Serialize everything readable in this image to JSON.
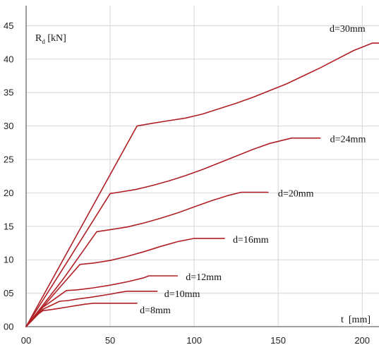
{
  "chart_data": {
    "type": "line",
    "title": "",
    "xlabel": "t  [mm]",
    "ylabel": "R",
    "ylabel_subscript": "d",
    "ylabel_unit": " [kN]",
    "xlim": [
      0,
      210
    ],
    "ylim": [
      0,
      48
    ],
    "x_ticks": [
      0,
      50,
      100,
      150,
      200
    ],
    "x_tick_labels": [
      "00",
      "50",
      "100",
      "150",
      "200"
    ],
    "y_ticks": [
      0,
      5,
      10,
      15,
      20,
      25,
      30,
      35,
      40,
      45
    ],
    "y_tick_labels": [
      "00",
      "05",
      "10",
      "15",
      "20",
      "25",
      "30",
      "35",
      "40",
      "45"
    ],
    "grid": true,
    "legend": "none",
    "line_color": "#b01f24",
    "series": [
      {
        "name": "d=8mm",
        "points": [
          [
            0,
            0
          ],
          [
            5,
            1.5
          ],
          [
            10,
            2.4
          ],
          [
            15,
            2.55
          ],
          [
            20,
            2.75
          ],
          [
            25,
            2.95
          ],
          [
            30,
            3.15
          ],
          [
            35,
            3.35
          ],
          [
            40,
            3.5
          ],
          [
            48,
            3.5
          ],
          [
            66,
            3.5
          ]
        ]
      },
      {
        "name": "d=10mm",
        "points": [
          [
            0,
            0
          ],
          [
            10,
            2.6
          ],
          [
            20,
            3.8
          ],
          [
            25,
            3.9
          ],
          [
            30,
            4.1
          ],
          [
            40,
            4.45
          ],
          [
            50,
            4.85
          ],
          [
            55,
            5.1
          ],
          [
            60,
            5.3
          ],
          [
            70,
            5.3
          ],
          [
            78,
            5.3
          ]
        ]
      },
      {
        "name": "d=12mm",
        "points": [
          [
            0,
            0
          ],
          [
            10,
            2.9
          ],
          [
            24,
            5.4
          ],
          [
            30,
            5.5
          ],
          [
            40,
            5.8
          ],
          [
            50,
            6.2
          ],
          [
            60,
            6.7
          ],
          [
            70,
            7.3
          ],
          [
            73,
            7.6
          ],
          [
            84,
            7.6
          ],
          [
            90,
            7.6
          ]
        ]
      },
      {
        "name": "d=16mm",
        "points": [
          [
            0,
            0
          ],
          [
            16,
            4.7
          ],
          [
            32,
            9.3
          ],
          [
            40,
            9.5
          ],
          [
            50,
            9.9
          ],
          [
            60,
            10.5
          ],
          [
            70,
            11.2
          ],
          [
            80,
            12.0
          ],
          [
            90,
            12.7
          ],
          [
            100,
            13.2
          ],
          [
            112,
            13.2
          ],
          [
            118,
            13.2
          ]
        ]
      },
      {
        "name": "d=20mm",
        "points": [
          [
            0,
            0
          ],
          [
            22,
            7.1
          ],
          [
            42,
            14.2
          ],
          [
            50,
            14.5
          ],
          [
            60,
            14.9
          ],
          [
            70,
            15.5
          ],
          [
            80,
            16.2
          ],
          [
            90,
            17.0
          ],
          [
            100,
            17.9
          ],
          [
            110,
            18.8
          ],
          [
            120,
            19.6
          ],
          [
            128,
            20.1
          ],
          [
            140,
            20.1
          ],
          [
            144,
            20.1
          ]
        ]
      },
      {
        "name": "d=24mm",
        "points": [
          [
            0,
            0
          ],
          [
            25,
            9.9
          ],
          [
            50,
            19.9
          ],
          [
            55,
            20.1
          ],
          [
            65,
            20.5
          ],
          [
            75,
            21.1
          ],
          [
            85,
            21.8
          ],
          [
            95,
            22.6
          ],
          [
            105,
            23.5
          ],
          [
            115,
            24.5
          ],
          [
            125,
            25.5
          ],
          [
            135,
            26.5
          ],
          [
            145,
            27.4
          ],
          [
            158,
            28.2
          ],
          [
            170,
            28.2
          ],
          [
            175,
            28.2
          ]
        ]
      },
      {
        "name": "d=30mm",
        "points": [
          [
            0,
            0
          ],
          [
            33,
            15.0
          ],
          [
            66,
            30.0
          ],
          [
            75,
            30.4
          ],
          [
            85,
            30.8
          ],
          [
            95,
            31.2
          ],
          [
            105,
            31.8
          ],
          [
            115,
            32.6
          ],
          [
            125,
            33.4
          ],
          [
            135,
            34.3
          ],
          [
            145,
            35.3
          ],
          [
            155,
            36.3
          ],
          [
            165,
            37.5
          ],
          [
            175,
            38.7
          ],
          [
            185,
            40.0
          ],
          [
            195,
            41.3
          ],
          [
            206,
            42.4
          ],
          [
            210,
            42.4
          ]
        ]
      }
    ],
    "label_positions_note": ""
  }
}
